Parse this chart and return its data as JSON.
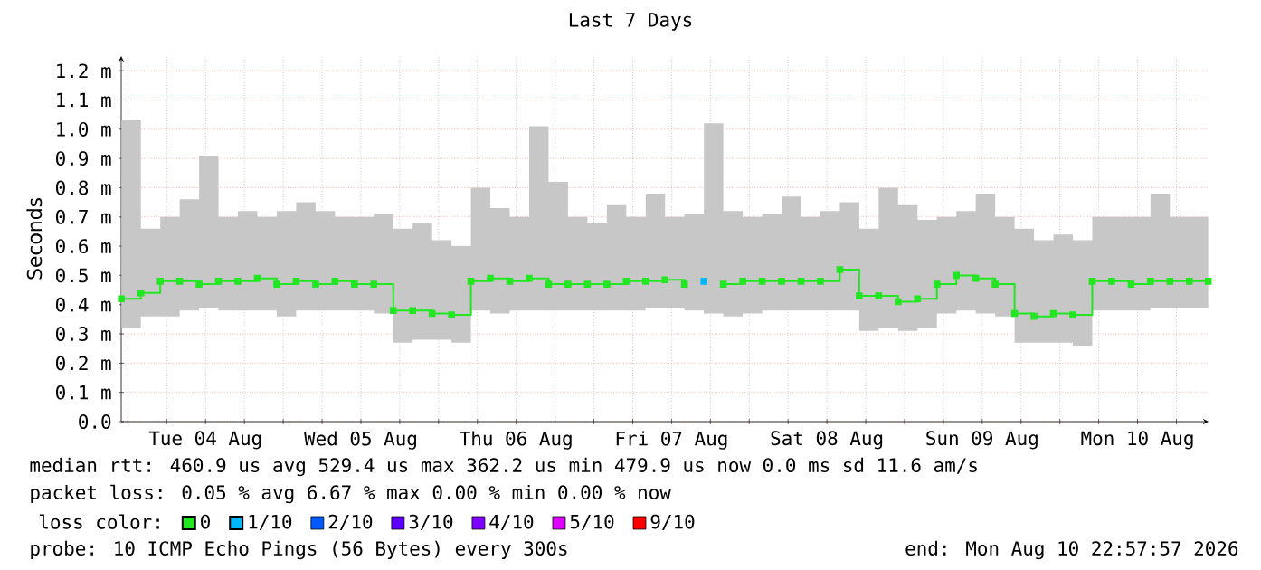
{
  "chart_data": {
    "type": "step",
    "title": "Last 7 Days",
    "ylabel": "Seconds",
    "x": [
      "2026-08-03T23:00",
      "2026-08-04T02:00",
      "2026-08-04T05:00",
      "2026-08-04T08:00",
      "2026-08-04T11:00",
      "2026-08-04T14:00",
      "2026-08-04T17:00",
      "2026-08-04T20:00",
      "2026-08-04T23:00",
      "2026-08-05T02:00",
      "2026-08-05T05:00",
      "2026-08-05T08:00",
      "2026-08-05T11:00",
      "2026-08-05T14:00",
      "2026-08-05T17:00",
      "2026-08-05T20:00",
      "2026-08-05T23:00",
      "2026-08-06T02:00",
      "2026-08-06T05:00",
      "2026-08-06T08:00",
      "2026-08-06T11:00",
      "2026-08-06T14:00",
      "2026-08-06T17:00",
      "2026-08-06T20:00",
      "2026-08-06T23:00",
      "2026-08-07T02:00",
      "2026-08-07T05:00",
      "2026-08-07T08:00",
      "2026-08-07T11:00",
      "2026-08-07T14:00",
      "2026-08-07T17:00",
      "2026-08-07T20:00",
      "2026-08-07T23:00",
      "2026-08-08T02:00",
      "2026-08-08T05:00",
      "2026-08-08T08:00",
      "2026-08-08T11:00",
      "2026-08-08T14:00",
      "2026-08-08T17:00",
      "2026-08-08T20:00",
      "2026-08-08T23:00",
      "2026-08-09T02:00",
      "2026-08-09T05:00",
      "2026-08-09T08:00",
      "2026-08-09T11:00",
      "2026-08-09T14:00",
      "2026-08-09T17:00",
      "2026-08-09T20:00",
      "2026-08-09T23:00",
      "2026-08-10T02:00",
      "2026-08-10T05:00",
      "2026-08-10T08:00",
      "2026-08-10T11:00",
      "2026-08-10T14:00",
      "2026-08-10T17:00",
      "2026-08-10T20:00",
      "2026-08-10T22:55"
    ],
    "series": [
      {
        "name": "0",
        "color": "#22e622",
        "values": [
          0.42,
          0.44,
          0.48,
          0.48,
          0.47,
          0.48,
          0.48,
          0.49,
          0.47,
          0.48,
          0.47,
          0.48,
          0.47,
          0.47,
          0.38,
          0.38,
          0.37,
          0.365,
          0.48,
          0.49,
          0.48,
          0.49,
          0.47,
          0.47,
          0.47,
          0.47,
          0.48,
          0.48,
          0.485,
          0.47,
          null,
          0.47,
          0.48,
          0.48,
          0.48,
          0.48,
          0.48,
          0.52,
          0.43,
          0.43,
          0.41,
          0.42,
          0.47,
          0.5,
          0.49,
          0.47,
          0.37,
          0.36,
          0.37,
          0.365,
          0.48,
          0.48,
          0.47,
          0.48,
          0.48,
          0.48,
          0.48
        ],
        "upper": [
          1.03,
          0.66,
          0.7,
          0.76,
          0.91,
          0.7,
          0.72,
          0.7,
          0.72,
          0.75,
          0.72,
          0.7,
          0.7,
          0.71,
          0.66,
          0.68,
          0.62,
          0.6,
          0.8,
          0.73,
          0.7,
          1.01,
          0.82,
          0.7,
          0.68,
          0.74,
          0.7,
          0.78,
          0.7,
          0.71,
          1.02,
          0.72,
          0.7,
          0.71,
          0.77,
          0.7,
          0.72,
          0.75,
          0.66,
          0.8,
          0.74,
          0.69,
          0.7,
          0.72,
          0.78,
          0.7,
          0.66,
          0.62,
          0.64,
          0.62,
          0.7,
          0.7,
          0.7,
          0.78,
          0.7,
          0.7,
          0.7
        ],
        "lower": [
          0.32,
          0.36,
          0.36,
          0.38,
          0.39,
          0.38,
          0.38,
          0.38,
          0.36,
          0.38,
          0.38,
          0.38,
          0.38,
          0.37,
          0.27,
          0.28,
          0.28,
          0.27,
          0.38,
          0.37,
          0.38,
          0.38,
          0.38,
          0.38,
          0.38,
          0.38,
          0.38,
          0.39,
          0.39,
          0.38,
          0.37,
          0.36,
          0.37,
          0.38,
          0.38,
          0.38,
          0.38,
          0.38,
          0.31,
          0.32,
          0.31,
          0.32,
          0.37,
          0.38,
          0.37,
          0.36,
          0.27,
          0.27,
          0.27,
          0.26,
          0.38,
          0.38,
          0.38,
          0.39,
          0.39,
          0.39,
          0.39
        ]
      },
      {
        "name": "1/10",
        "color": "#00b8ff",
        "values": [
          null,
          null,
          null,
          null,
          null,
          null,
          null,
          null,
          null,
          null,
          null,
          null,
          null,
          null,
          null,
          null,
          null,
          null,
          null,
          null,
          null,
          null,
          null,
          null,
          null,
          null,
          null,
          null,
          null,
          null,
          0.48,
          null,
          null,
          null,
          null,
          null,
          null,
          null,
          null,
          null,
          null,
          null,
          null,
          null,
          null,
          null,
          null,
          null,
          null,
          null,
          null,
          null,
          null,
          null,
          null,
          null,
          null
        ]
      },
      {
        "name": "2/10",
        "color": "#0059ff",
        "values": [
          null,
          null,
          null,
          null,
          null,
          null,
          null,
          null,
          null,
          null,
          null,
          null,
          null,
          null,
          null,
          null,
          null,
          null,
          null,
          null,
          null,
          null,
          null,
          null,
          null,
          null,
          null,
          null,
          null,
          null,
          null,
          null,
          null,
          null,
          null,
          null,
          null,
          null,
          null,
          null,
          null,
          null,
          null,
          null,
          null,
          null,
          null,
          null,
          null,
          null,
          null,
          null,
          null,
          null,
          null,
          null,
          null
        ]
      },
      {
        "name": "3/10",
        "color": "#5e00ff",
        "values": [
          null,
          null,
          null,
          null,
          null,
          null,
          null,
          null,
          null,
          null,
          null,
          null,
          null,
          null,
          null,
          null,
          null,
          null,
          null,
          null,
          null,
          null,
          null,
          null,
          null,
          null,
          null,
          null,
          null,
          null,
          null,
          null,
          null,
          null,
          null,
          null,
          null,
          null,
          null,
          null,
          null,
          null,
          null,
          null,
          null,
          null,
          null,
          null,
          null,
          null,
          null,
          null,
          null,
          null,
          null,
          null,
          null
        ]
      },
      {
        "name": "4/10",
        "color": "#7e00ff",
        "values": [
          null,
          null,
          null,
          null,
          null,
          null,
          null,
          null,
          null,
          null,
          null,
          null,
          null,
          null,
          null,
          null,
          null,
          null,
          null,
          null,
          null,
          null,
          null,
          null,
          null,
          null,
          null,
          null,
          null,
          null,
          null,
          null,
          null,
          null,
          null,
          null,
          null,
          null,
          null,
          null,
          null,
          null,
          null,
          null,
          null,
          null,
          null,
          null,
          null,
          null,
          null,
          null,
          null,
          null,
          null,
          null,
          null
        ]
      },
      {
        "name": "5/10",
        "color": "#dd00ff",
        "values": [
          null,
          null,
          null,
          null,
          null,
          null,
          null,
          null,
          null,
          null,
          null,
          null,
          null,
          null,
          null,
          null,
          null,
          null,
          null,
          null,
          null,
          null,
          null,
          null,
          null,
          null,
          null,
          null,
          null,
          null,
          null,
          null,
          null,
          null,
          null,
          null,
          null,
          null,
          null,
          null,
          null,
          null,
          null,
          null,
          null,
          null,
          null,
          null,
          null,
          null,
          null,
          null,
          null,
          null,
          null,
          null,
          null
        ]
      },
      {
        "name": "9/10",
        "color": "#ff0000",
        "values": [
          null,
          null,
          null,
          null,
          null,
          null,
          null,
          null,
          null,
          null,
          null,
          null,
          null,
          null,
          null,
          null,
          null,
          null,
          null,
          null,
          null,
          null,
          null,
          null,
          null,
          null,
          null,
          null,
          null,
          null,
          null,
          null,
          null,
          null,
          null,
          null,
          null,
          null,
          null,
          null,
          null,
          null,
          null,
          null,
          null,
          null,
          null,
          null,
          null,
          null,
          null,
          null,
          null,
          null,
          null,
          null,
          null
        ]
      }
    ],
    "xlim": [
      "2026-08-03T22:58",
      "2026-08-10T22:58"
    ],
    "xticks": [
      {
        "value": "2026-08-04T00:00",
        "label": null
      },
      {
        "value": "2026-08-04T06:00",
        "label": null
      },
      {
        "value": "2026-08-04T12:00",
        "label": "Tue 04 Aug"
      },
      {
        "value": "2026-08-04T18:00",
        "label": null
      },
      {
        "value": "2026-08-05T00:00",
        "label": null
      },
      {
        "value": "2026-08-05T06:00",
        "label": null
      },
      {
        "value": "2026-08-05T12:00",
        "label": "Wed 05 Aug"
      },
      {
        "value": "2026-08-05T18:00",
        "label": null
      },
      {
        "value": "2026-08-06T00:00",
        "label": null
      },
      {
        "value": "2026-08-06T06:00",
        "label": null
      },
      {
        "value": "2026-08-06T12:00",
        "label": "Thu 06 Aug"
      },
      {
        "value": "2026-08-06T18:00",
        "label": null
      },
      {
        "value": "2026-08-07T00:00",
        "label": null
      },
      {
        "value": "2026-08-07T06:00",
        "label": null
      },
      {
        "value": "2026-08-07T12:00",
        "label": "Fri 07 Aug"
      },
      {
        "value": "2026-08-07T18:00",
        "label": null
      },
      {
        "value": "2026-08-08T00:00",
        "label": null
      },
      {
        "value": "2026-08-08T06:00",
        "label": null
      },
      {
        "value": "2026-08-08T12:00",
        "label": "Sat 08 Aug"
      },
      {
        "value": "2026-08-08T18:00",
        "label": null
      },
      {
        "value": "2026-08-09T00:00",
        "label": null
      },
      {
        "value": "2026-08-09T06:00",
        "label": null
      },
      {
        "value": "2026-08-09T12:00",
        "label": "Sun 09 Aug"
      },
      {
        "value": "2026-08-09T18:00",
        "label": null
      },
      {
        "value": "2026-08-10T00:00",
        "label": null
      },
      {
        "value": "2026-08-10T06:00",
        "label": null
      },
      {
        "value": "2026-08-10T12:00",
        "label": "Mon 10 Aug"
      },
      {
        "value": "2026-08-10T18:00",
        "label": null
      }
    ],
    "ylim": [
      0,
      1.25
    ],
    "yticks": [
      {
        "value": 0,
        "label": "0.0"
      },
      {
        "value": 0.1,
        "label": "0.1 m"
      },
      {
        "value": 0.2,
        "label": "0.2 m"
      },
      {
        "value": 0.3,
        "label": "0.3 m"
      },
      {
        "value": 0.4,
        "label": "0.4 m"
      },
      {
        "value": 0.5,
        "label": "0.5 m"
      },
      {
        "value": 0.6,
        "label": "0.6 m"
      },
      {
        "value": 0.7,
        "label": "0.7 m"
      },
      {
        "value": 0.8,
        "label": "0.8 m"
      },
      {
        "value": 0.9,
        "label": "0.9 m"
      },
      {
        "value": 1.0,
        "label": "1.0 m"
      },
      {
        "value": 1.1,
        "label": "1.1 m"
      },
      {
        "value": 1.2,
        "label": "1.2 m"
      }
    ],
    "grid": true,
    "marker": "square",
    "legend": "bottom",
    "legend_title": "loss color:",
    "annotations": [
      "median rtt:  460.9 us avg  529.4 us max  362.2 us min  479.9 us now  0.0 ms sd  11.6   am/s",
      "packet loss: 0.05 % avg  6.67 % max  0.00 % min  0.00 % now",
      "probe:       10 ICMP Echo Pings (56 Bytes) every 300s",
      "end: Mon Aug 10 22:57:57 2026"
    ]
  }
}
